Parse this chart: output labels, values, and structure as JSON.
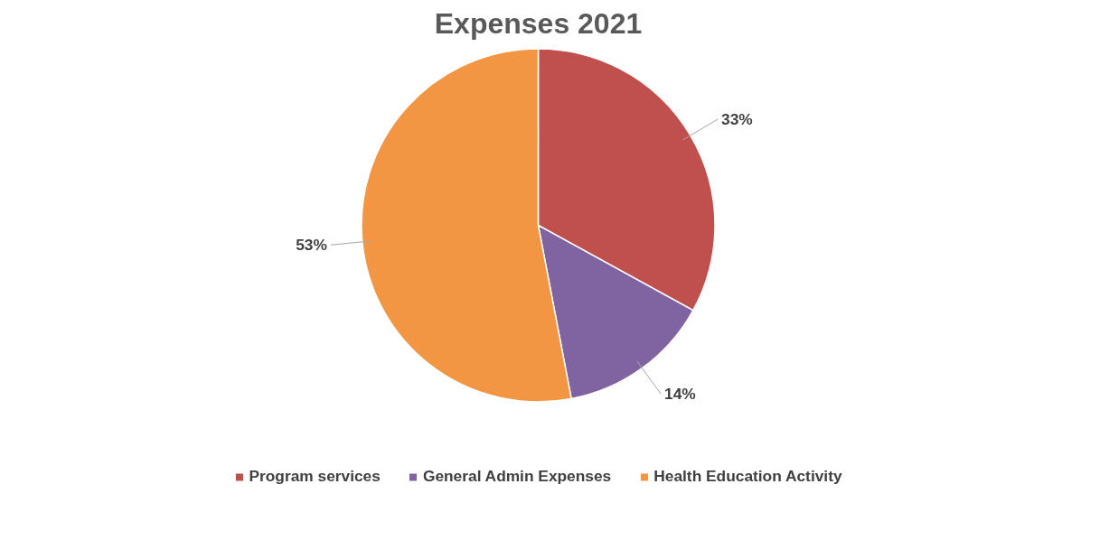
{
  "chart_data": {
    "type": "pie",
    "title": "Expenses 2021",
    "categories": [
      "Program services",
      "General Admin Expenses",
      "Health Education Activity"
    ],
    "values": [
      33,
      14,
      53
    ],
    "colors": [
      "#c0504d",
      "#8064a2",
      "#f39644"
    ],
    "value_labels": [
      "33%",
      "14%",
      "53%"
    ],
    "legend": "bottom"
  }
}
